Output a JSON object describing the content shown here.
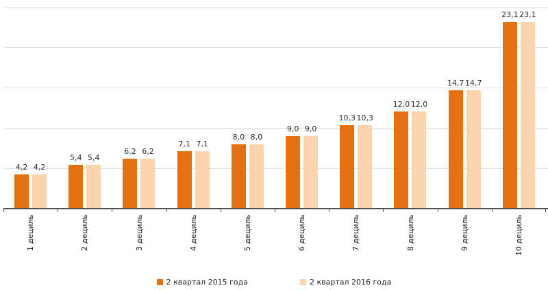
{
  "chart_data": {
    "type": "bar",
    "title": "",
    "xlabel": "",
    "ylabel": "",
    "categories": [
      "1 дециль",
      "2 дециль",
      "3 дециль",
      "4 дециль",
      "5 дециль",
      "6 дециль",
      "7 дециль",
      "8 дециль",
      "9 дециль",
      "10 дециль"
    ],
    "series": [
      {
        "name": "2 квартал 2015 года",
        "color": "#E5700F",
        "values": [
          4.2,
          5.4,
          6.2,
          7.1,
          8.0,
          9.0,
          10.3,
          12.0,
          14.7,
          23.1
        ],
        "labels": [
          "4,2",
          "5,4",
          "6,2",
          "7,1",
          "8,0",
          "9,0",
          "10,3",
          "12,0",
          "14,7",
          "23,1"
        ]
      },
      {
        "name": "2 квартал 2016 года",
        "color": "#FBD3AD",
        "values": [
          4.2,
          5.4,
          6.2,
          7.1,
          8.0,
          9.0,
          10.3,
          12.0,
          14.7,
          23.1
        ],
        "labels": [
          "4,2",
          "5,4",
          "6,2",
          "7,1",
          "8,0",
          "9,0",
          "10,3",
          "12,0",
          "14,7",
          "23,1"
        ]
      }
    ],
    "ylim": [
      0,
      25
    ],
    "gridline_step": 5,
    "grid": true,
    "legend_position": "bottom",
    "colors": {
      "background": "#FFFFFF",
      "gridline": "#DDDDEB",
      "axis": "#4D4D4D",
      "value_label_text": "#2B2B2B",
      "axis_label_text": "#1A1A1A",
      "legend_text": "#262626"
    }
  }
}
